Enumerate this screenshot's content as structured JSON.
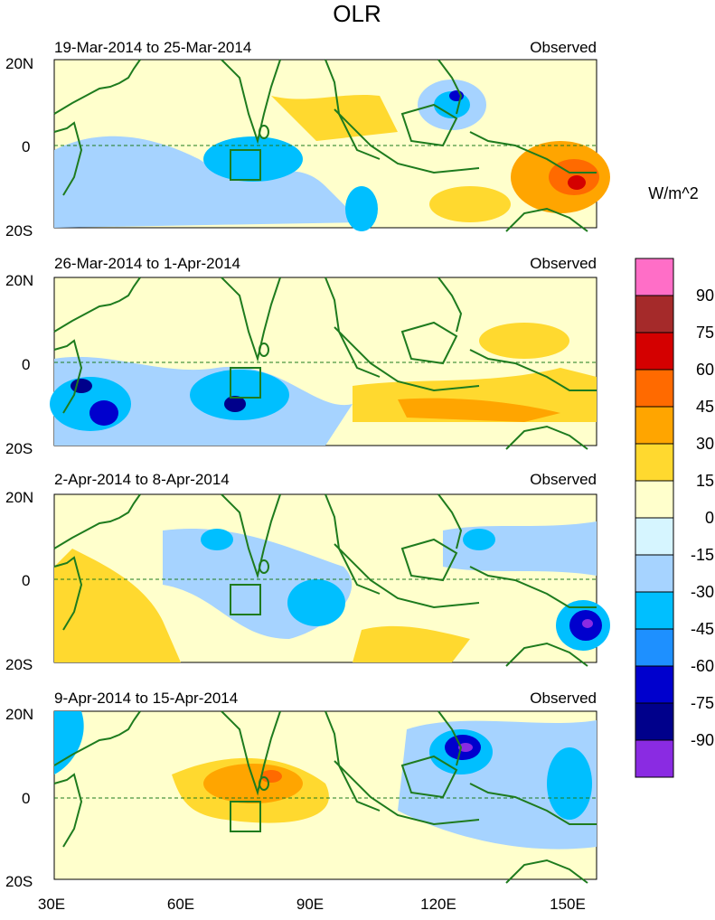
{
  "title": "OLR",
  "units": "W/m^2",
  "lat_labels": [
    "20N",
    "0",
    "20S"
  ],
  "lon_labels": [
    "30E",
    "60E",
    "90E",
    "120E",
    "150E"
  ],
  "observed_label": "Observed",
  "panels": [
    {
      "dates": "19-Mar-2014 to 25-Mar-2014",
      "tag": "Observed"
    },
    {
      "dates": "26-Mar-2014 to 1-Apr-2014",
      "tag": "Observed"
    },
    {
      "dates": "2-Apr-2014 to 8-Apr-2014",
      "tag": "Observed"
    },
    {
      "dates": "9-Apr-2014 to 15-Apr-2014",
      "tag": "Observed"
    }
  ],
  "colorbar": {
    "labels": [
      "90",
      "75",
      "60",
      "45",
      "30",
      "15",
      "0",
      "-15",
      "-30",
      "-45",
      "-60",
      "-75",
      "-90"
    ],
    "colors": [
      "#ff6ec7",
      "#a52a2a",
      "#d40000",
      "#ff6a00",
      "#ffa500",
      "#ffd92f",
      "#ffffcc",
      "#d6f5ff",
      "#a6d3ff",
      "#00bfff",
      "#1e90ff",
      "#0000cd",
      "#00008b",
      "#8a2be2"
    ]
  }
}
